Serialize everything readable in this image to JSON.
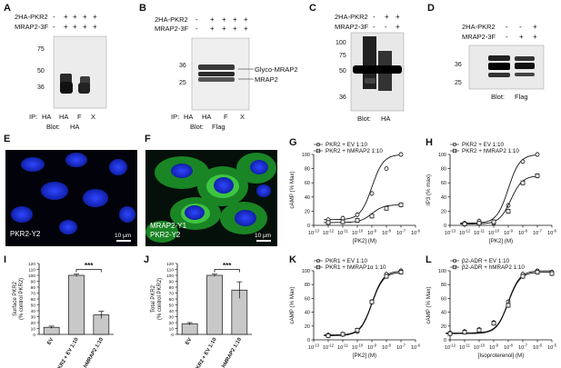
{
  "panels": {
    "A": {
      "letter": "A",
      "rows": [
        {
          "label": "2HA-PKR2",
          "marks": [
            "-",
            "+",
            "+",
            "+",
            "+"
          ]
        },
        {
          "label": "MRAP2-3F",
          "marks": [
            "-",
            "+",
            "+",
            "+",
            "+"
          ]
        }
      ],
      "mw": [
        "75",
        "50",
        "36"
      ],
      "ip_prefix": "IP:",
      "ip": [
        "HA",
        "HA",
        "F",
        "X"
      ],
      "blot_prefix": "Blot:",
      "blot": "HA"
    },
    "B": {
      "letter": "B",
      "rows": [
        {
          "label": "2HA-PKR2",
          "marks": [
            "-",
            "+",
            "+",
            "+",
            "+"
          ]
        },
        {
          "label": "MRAP2-3F",
          "marks": [
            "-",
            "+",
            "+",
            "+",
            "+"
          ]
        }
      ],
      "mw": [
        "36",
        "25"
      ],
      "band_labels": [
        "Glyco-MRAP2",
        "MRAP2"
      ],
      "ip_prefix": "IP:",
      "ip": [
        "HA",
        "HA",
        "F",
        "X"
      ],
      "blot_prefix": "Blot:",
      "blot": "Flag"
    },
    "C": {
      "letter": "C",
      "rows": [
        {
          "label": "2HA-PKR2",
          "marks": [
            "-",
            "+",
            "+"
          ]
        },
        {
          "label": "MRAP2-3F",
          "marks": [
            "-",
            "-",
            "+"
          ]
        }
      ],
      "mw": [
        "100",
        "75",
        "50",
        "36"
      ],
      "blot_prefix": "Blot:",
      "blot": "HA"
    },
    "D": {
      "letter": "D",
      "rows": [
        {
          "label": "2HA-PKR2",
          "marks": [
            "-",
            "-",
            "+"
          ]
        },
        {
          "label": "MRAP2-3F",
          "marks": [
            "-",
            "+",
            "+"
          ]
        }
      ],
      "mw": [
        "36",
        "25"
      ],
      "blot_prefix": "Blot:",
      "blot": "Flag"
    },
    "E": {
      "letter": "E",
      "caption": "PKR2-Y2",
      "scale": "10 μm"
    },
    "F": {
      "letter": "F",
      "caption1": "MRAP2-Y1",
      "caption2": "PKR2-Y2",
      "scale": "10 μm"
    }
  },
  "chart_data": [
    {
      "panel": "G",
      "type": "scatter",
      "ylabel": "cAMP (% Max)",
      "xlabel": "[PK2] (M)",
      "xlog": true,
      "x_ticks": [
        "10^-13",
        "10^-12",
        "10^-11",
        "10^-10",
        "10^-9",
        "10^-8",
        "10^-7",
        "10^-6"
      ],
      "ylim": [
        0,
        100
      ],
      "y_ticks": [
        0,
        20,
        40,
        60,
        80,
        100
      ],
      "legend": "top-left",
      "series": [
        {
          "name": "PKR2 + EV 1:10",
          "marker": "circle",
          "x": [
            1e-12,
            1e-11,
            1e-10,
            1e-09,
            1e-08,
            1e-07
          ],
          "y": [
            8,
            10,
            15,
            45,
            80,
            100
          ],
          "ec50": 1e-09
        },
        {
          "name": "PKR2 + hMRAP2 1:10",
          "marker": "square",
          "x": [
            1e-12,
            1e-11,
            1e-10,
            1e-09,
            1e-08,
            1e-07
          ],
          "y": [
            4,
            5,
            7,
            13,
            24,
            29
          ],
          "ec50": 1e-09
        }
      ]
    },
    {
      "panel": "H",
      "type": "scatter",
      "ylabel": "IP3 (% max)",
      "xlabel": "[PK2] (M)",
      "xlog": true,
      "x_ticks": [
        "10^-13",
        "10^-12",
        "10^-11",
        "10^-10",
        "10^-9",
        "10^-8",
        "10^-7",
        "10^-6"
      ],
      "ylim": [
        0,
        100
      ],
      "y_ticks": [
        0,
        20,
        40,
        60,
        80,
        100
      ],
      "legend": "top-left",
      "series": [
        {
          "name": "PKR2 + EV 1:10",
          "marker": "circle",
          "x": [
            1e-12,
            1e-11,
            1e-10,
            1e-09,
            1e-08,
            1e-07
          ],
          "y": [
            3,
            6,
            3,
            28,
            90,
            100
          ],
          "ec50": 1e-09
        },
        {
          "name": "PKR2 + hMRAP2 1:10",
          "marker": "square",
          "x": [
            1e-12,
            1e-11,
            1e-10,
            1e-09,
            1e-08,
            1e-07
          ],
          "y": [
            2,
            3,
            5,
            20,
            60,
            70
          ],
          "ec50": 1.5e-09
        }
      ]
    },
    {
      "panel": "I",
      "type": "bar",
      "ylabel": "Surface PKR2 (% control PKR2)",
      "categories": [
        "EV",
        "PKR2 + EV 1:10",
        "PKR2 + hMRAP2 1:10"
      ],
      "values": [
        12,
        100,
        33
      ],
      "errors": [
        2,
        2,
        6
      ],
      "ylim": [
        0,
        120
      ],
      "y_ticks": [
        0,
        10,
        20,
        30,
        40,
        50,
        60,
        70,
        80,
        90,
        100,
        110,
        120
      ],
      "significance": "***"
    },
    {
      "panel": "J",
      "type": "bar",
      "ylabel": "Total PKR2 (% control PKR2)",
      "categories": [
        "EV",
        "PKR2 + EV 1:10",
        "PKR2 + hMRAP2 1:10"
      ],
      "values": [
        18,
        100,
        75
      ],
      "errors": [
        2,
        2,
        14
      ],
      "ylim": [
        0,
        120
      ],
      "y_ticks": [
        0,
        10,
        20,
        30,
        40,
        50,
        60,
        70,
        80,
        90,
        100,
        110,
        120
      ],
      "significance": "***"
    },
    {
      "panel": "K",
      "type": "scatter",
      "ylabel": "cAMP (% Max)",
      "xlabel": "[PK2] (M)",
      "xlog": true,
      "x_ticks": [
        "10^-13",
        "10^-12",
        "10^-11",
        "10^-10",
        "10^-9",
        "10^-8",
        "10^-7",
        "10^-6"
      ],
      "ylim": [
        0,
        100
      ],
      "y_ticks": [
        0,
        20,
        40,
        60,
        80,
        100
      ],
      "legend": "top-left",
      "series": [
        {
          "name": "PKR1 + EV 1:10",
          "marker": "circle",
          "x": [
            1e-12,
            1e-11,
            1e-10,
            1e-09,
            1e-08,
            1e-07
          ],
          "y": [
            7,
            8,
            12,
            55,
            95,
            100
          ],
          "ec50": 1e-09
        },
        {
          "name": "PKR1 + hMRAP1α 1:10",
          "marker": "square",
          "x": [
            1e-12,
            1e-11,
            1e-10,
            1e-09,
            1e-08,
            1e-07
          ],
          "y": [
            6,
            8,
            14,
            55,
            92,
            98
          ],
          "ec50": 1e-09
        }
      ]
    },
    {
      "panel": "L",
      "type": "scatter",
      "ylabel": "cAMP (% Max)",
      "xlabel": "[Isoproterenol] (M)",
      "xlog": true,
      "x_ticks": [
        "10^-12",
        "10^-11",
        "10^-10",
        "10^-9",
        "10^-8",
        "10^-7",
        "10^-6",
        "10^-5"
      ],
      "ylim": [
        0,
        100
      ],
      "y_ticks": [
        0,
        20,
        40,
        60,
        80,
        100
      ],
      "legend": "top-left",
      "series": [
        {
          "name": "β2-ADR + EV 1:10",
          "marker": "circle",
          "x": [
            1e-12,
            1e-11,
            1e-10,
            1e-09,
            1e-08,
            1e-07,
            1e-06,
            1e-05
          ],
          "y": [
            10,
            12,
            15,
            25,
            55,
            95,
            100,
            98
          ],
          "ec50": 1e-08
        },
        {
          "name": "β2-ADR + hMRAP2 1:10",
          "marker": "square",
          "x": [
            1e-12,
            1e-11,
            1e-10,
            1e-09,
            1e-08,
            1e-07,
            1e-06,
            1e-05
          ],
          "y": [
            9,
            11,
            14,
            24,
            50,
            92,
            98,
            96
          ],
          "ec50": 1e-08
        }
      ]
    }
  ]
}
